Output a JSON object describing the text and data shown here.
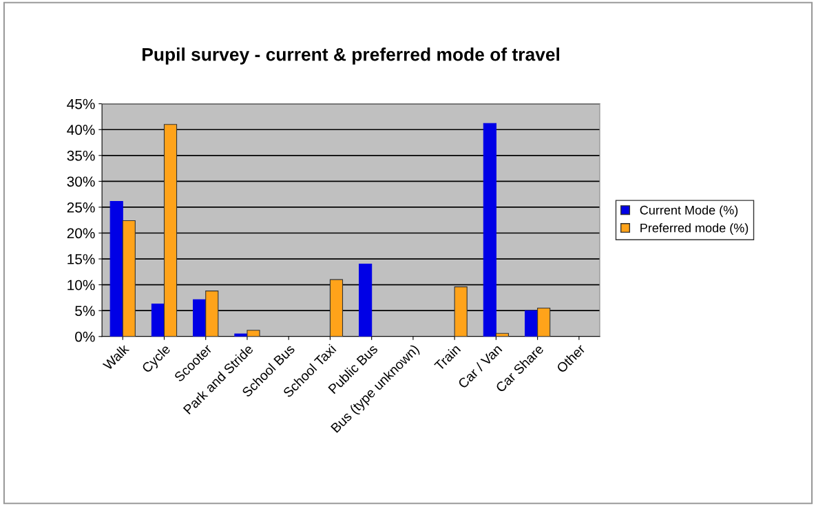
{
  "chart_data": {
    "type": "bar",
    "title": "Pupil survey - current & preferred mode of travel",
    "categories": [
      "Walk",
      "Cycle",
      "Scooter",
      "Park and Stride",
      "School Bus",
      "School Taxi",
      "Public Bus",
      "Bus (type unknown)",
      "Train",
      "Car / Van",
      "Car Share",
      "Other"
    ],
    "series": [
      {
        "name": "Current Mode (%)",
        "color": "#0000e6",
        "values": [
          26.1,
          6.3,
          7.1,
          0.5,
          0,
          0,
          14.0,
          0,
          0,
          41.2,
          5.0,
          0
        ]
      },
      {
        "name": "Preferred mode (%)",
        "color": "#ffa31a",
        "values": [
          22.4,
          41.0,
          8.8,
          1.2,
          0,
          11.0,
          0,
          0,
          9.6,
          0.6,
          5.5,
          0
        ]
      }
    ],
    "ylim": [
      0,
      45
    ],
    "yticks": [
      {
        "value": 0,
        "label": "0%"
      },
      {
        "value": 5,
        "label": "5%"
      },
      {
        "value": 10,
        "label": "10%"
      },
      {
        "value": 15,
        "label": "15%"
      },
      {
        "value": 20,
        "label": "20%"
      },
      {
        "value": 25,
        "label": "25%"
      },
      {
        "value": 30,
        "label": "30%"
      },
      {
        "value": 35,
        "label": "35%"
      },
      {
        "value": 40,
        "label": "40%"
      },
      {
        "value": 45,
        "label": "45%"
      }
    ],
    "grid": "y",
    "legend": "right"
  }
}
